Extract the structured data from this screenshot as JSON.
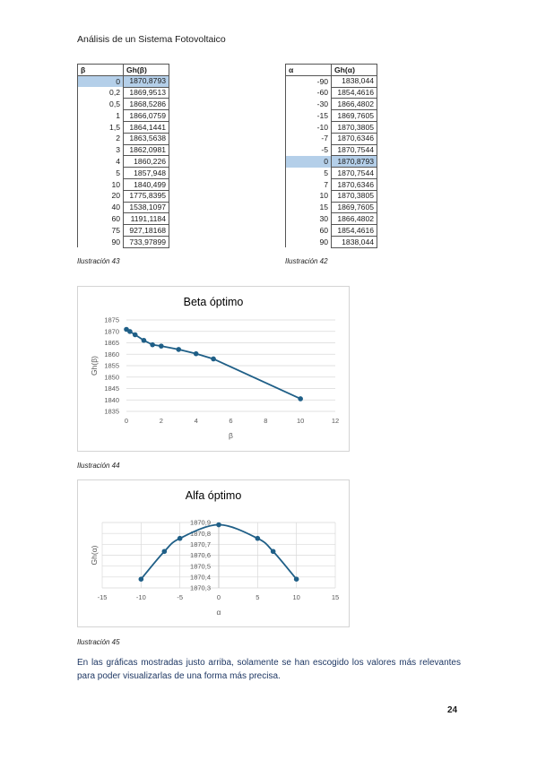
{
  "header": {
    "title": "Análisis de un Sistema Fotovoltaico"
  },
  "table_beta": {
    "headers": [
      "β",
      "Gh(β)"
    ],
    "rows": [
      [
        "0",
        "1870,8793"
      ],
      [
        "0,2",
        "1869,9513"
      ],
      [
        "0,5",
        "1868,5286"
      ],
      [
        "1",
        "1866,0759"
      ],
      [
        "1,5",
        "1864,1441"
      ],
      [
        "2",
        "1863,5638"
      ],
      [
        "3",
        "1862,0981"
      ],
      [
        "4",
        "1860,226"
      ],
      [
        "5",
        "1857,948"
      ],
      [
        "10",
        "1840,499"
      ],
      [
        "20",
        "1775,8395"
      ],
      [
        "40",
        "1538,1097"
      ],
      [
        "60",
        "1191,1184"
      ],
      [
        "75",
        "927,18168"
      ],
      [
        "90",
        "733,97899"
      ]
    ],
    "caption": "Ilustración 43"
  },
  "table_alpha": {
    "headers": [
      "α",
      "Gh(α)"
    ],
    "rows": [
      [
        "-90",
        "1838,044"
      ],
      [
        "-60",
        "1854,4616"
      ],
      [
        "-30",
        "1866,4802"
      ],
      [
        "-15",
        "1869,7605"
      ],
      [
        "-10",
        "1870,3805"
      ],
      [
        "-7",
        "1870,6346"
      ],
      [
        "-5",
        "1870,7544"
      ],
      [
        "0",
        "1870,8793"
      ],
      [
        "5",
        "1870,7544"
      ],
      [
        "7",
        "1870,6346"
      ],
      [
        "10",
        "1870,3805"
      ],
      [
        "15",
        "1869,7605"
      ],
      [
        "30",
        "1866,4802"
      ],
      [
        "60",
        "1854,4616"
      ],
      [
        "90",
        "1838,044"
      ]
    ],
    "caption": "Ilustración 42"
  },
  "chart_data": [
    {
      "type": "scatter",
      "title": "Beta óptimo",
      "xlabel": "β",
      "ylabel": "Gh(β)",
      "xlim": [
        0,
        12
      ],
      "ylim": [
        1835,
        1875
      ],
      "xticks": [
        "0",
        "2",
        "4",
        "6",
        "8",
        "10",
        "12"
      ],
      "yticks": [
        "1835",
        "1840",
        "1845",
        "1850",
        "1855",
        "1860",
        "1865",
        "1870",
        "1875"
      ],
      "x": [
        0,
        0.2,
        0.5,
        1,
        1.5,
        2,
        3,
        4,
        5,
        10
      ],
      "y": [
        1870.8793,
        1869.9513,
        1868.5286,
        1866.0759,
        1864.1441,
        1863.5638,
        1862.0981,
        1860.226,
        1857.948,
        1840.499
      ],
      "color": "#1f5f87",
      "caption": "Ilustración 44"
    },
    {
      "type": "scatter",
      "title": "Alfa óptimo",
      "xlabel": "α",
      "ylabel": "Gh(α)",
      "xlim": [
        -15,
        15
      ],
      "ylim": [
        1870.3,
        1870.9
      ],
      "xticks": [
        "-15",
        "-10",
        "-5",
        "0",
        "5",
        "10",
        "15"
      ],
      "yticks": [
        "1870,3",
        "1870,4",
        "1870,5",
        "1870,6",
        "1870,7",
        "1870,8",
        "1870,9"
      ],
      "x": [
        -10,
        -7,
        -5,
        0,
        5,
        7,
        10
      ],
      "y": [
        1870.3805,
        1870.6346,
        1870.7544,
        1870.8793,
        1870.7544,
        1870.6346,
        1870.3805
      ],
      "color": "#1f5f87",
      "caption": "Ilustración 45"
    }
  ],
  "paragraph": "En las gráficas mostradas justo arriba, solamente se han escogido los valores más relevantes para poder visualizarlas de una forma más precisa.",
  "page_number": "24"
}
